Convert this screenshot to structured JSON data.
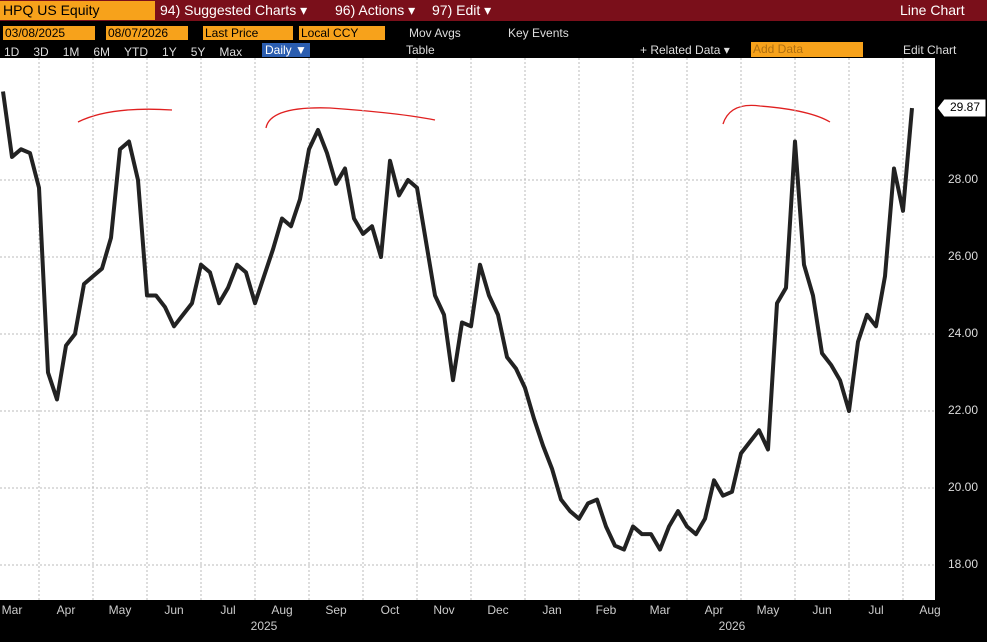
{
  "toolbar": {
    "ticker": "HPQ US Equity",
    "menu": [
      "94) Suggested Charts ▾",
      "96) Actions ▾",
      "97) Edit ▾"
    ],
    "view": "Line Chart",
    "start_date": "03/08/2025",
    "end_date": "08/07/2026",
    "field": "Last Price",
    "currency": "Local CCY",
    "mov_avgs": "Mov Avgs",
    "key_events": "Key Events",
    "ranges": [
      "1D",
      "3D",
      "1M",
      "6M",
      "YTD",
      "1Y",
      "5Y",
      "Max"
    ],
    "frequency": "Daily ▼",
    "table": "Table",
    "related": "+ Related Data ▾",
    "add_data": "Add Data",
    "edit_chart": "Edit Chart"
  },
  "chart_data": {
    "type": "line",
    "years": [
      "2025",
      "2026"
    ],
    "categories": [
      null,
      "Mar",
      null,
      null,
      null,
      null,
      null,
      "Apr",
      null,
      null,
      null,
      null,
      null,
      "May",
      null,
      null,
      null,
      null,
      null,
      "Jun",
      null,
      null,
      null,
      null,
      null,
      "Jul",
      null,
      null,
      null,
      null,
      null,
      "Aug",
      null,
      null,
      null,
      null,
      null,
      "Sep",
      null,
      null,
      null,
      null,
      null,
      "Oct",
      null,
      null,
      null,
      null,
      null,
      "Nov",
      null,
      null,
      null,
      null,
      null,
      "Dec",
      null,
      null,
      null,
      null,
      null,
      "Jan",
      null,
      null,
      null,
      null,
      null,
      "Feb",
      null,
      null,
      null,
      null,
      null,
      "Mar",
      null,
      null,
      null,
      null,
      null,
      "Apr",
      null,
      null,
      null,
      null,
      null,
      "May",
      null,
      null,
      null,
      null,
      null,
      "Jun",
      null,
      null,
      null,
      null,
      null,
      "Jul",
      null,
      null,
      null,
      null,
      null,
      "Aug"
    ],
    "series": [
      {
        "name": "Last Price",
        "color": "#222222",
        "values": [
          30.3,
          28.6,
          28.8,
          28.7,
          27.8,
          23.0,
          22.3,
          23.7,
          24.0,
          25.3,
          25.5,
          25.7,
          26.5,
          28.8,
          29.0,
          28.0,
          25.0,
          25.0,
          24.7,
          24.2,
          24.5,
          24.8,
          25.8,
          25.6,
          24.8,
          25.2,
          25.8,
          25.6,
          24.8,
          25.5,
          26.2,
          27.0,
          26.8,
          27.5,
          28.8,
          29.3,
          28.7,
          27.9,
          28.3,
          27.0,
          26.6,
          26.8,
          26.0,
          28.5,
          27.6,
          28.0,
          27.8,
          26.4,
          25.0,
          24.5,
          22.8,
          24.3,
          24.2,
          25.8,
          25.0,
          24.5,
          23.4,
          23.1,
          22.6,
          21.8,
          21.1,
          20.5,
          19.7,
          19.4,
          19.2,
          19.6,
          19.7,
          19.0,
          18.5,
          18.4,
          19.0,
          18.8,
          18.8,
          18.4,
          19.0,
          19.4,
          19.0,
          18.8,
          19.2,
          20.2,
          19.8,
          19.9,
          20.9,
          21.2,
          21.5,
          21.0,
          24.8,
          25.2,
          29.0,
          25.8,
          25.0,
          23.5,
          23.2,
          22.8,
          22.0,
          23.8,
          24.5,
          24.2,
          25.5,
          28.3,
          27.2,
          29.87,
          null,
          null
        ]
      }
    ],
    "ylim": [
      17.09,
      31.17
    ],
    "yticks": [
      {
        "value": 18,
        "label": "18.00"
      },
      {
        "value": 20,
        "label": "20.00"
      },
      {
        "value": 22,
        "label": "22.00"
      },
      {
        "value": 24,
        "label": "24.00"
      },
      {
        "value": 26,
        "label": "26.00"
      },
      {
        "value": 28,
        "label": "28.00"
      }
    ],
    "grid": true
  }
}
